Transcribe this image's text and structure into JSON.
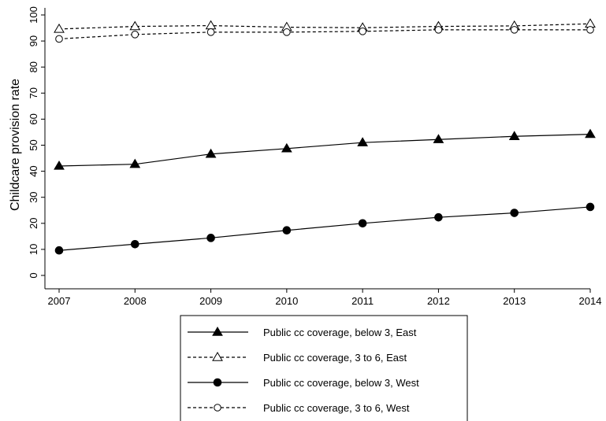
{
  "chart_data": {
    "type": "line",
    "ylabel": "Childcare provision rate",
    "xlabel": "",
    "x": [
      2007,
      2008,
      2009,
      2010,
      2011,
      2012,
      2013,
      2014
    ],
    "x_ticks": [
      "2007",
      "2008",
      "2009",
      "2010",
      "2011",
      "2012",
      "2013",
      "2014"
    ],
    "y_ticks": [
      "0",
      "10",
      "20",
      "30",
      "40",
      "50",
      "60",
      "70",
      "80",
      "90",
      "100"
    ],
    "ylim": [
      0,
      100
    ],
    "xlim": [
      2007,
      2014
    ],
    "grid": false,
    "legend_position": "bottom",
    "series": [
      {
        "name": "Public cc coverage, below 3, East",
        "values": [
          42.0,
          42.7,
          46.6,
          48.7,
          51.0,
          52.2,
          53.4,
          54.2
        ],
        "marker": "triangle-filled",
        "line": "solid"
      },
      {
        "name": "Public cc coverage, 3 to 6, East",
        "values": [
          94.6,
          95.6,
          95.9,
          95.3,
          95.1,
          95.6,
          95.8,
          96.6
        ],
        "marker": "triangle-hollow",
        "line": "dashed"
      },
      {
        "name": "Public cc coverage, below 3, West",
        "values": [
          9.6,
          12.0,
          14.4,
          17.3,
          20.0,
          22.3,
          24.0,
          26.3
        ],
        "marker": "circle-filled",
        "line": "solid"
      },
      {
        "name": "Public cc coverage, 3 to 6, West",
        "values": [
          90.8,
          92.5,
          93.4,
          93.4,
          93.7,
          94.3,
          94.3,
          94.3
        ],
        "marker": "circle-hollow",
        "line": "dashed"
      }
    ]
  }
}
